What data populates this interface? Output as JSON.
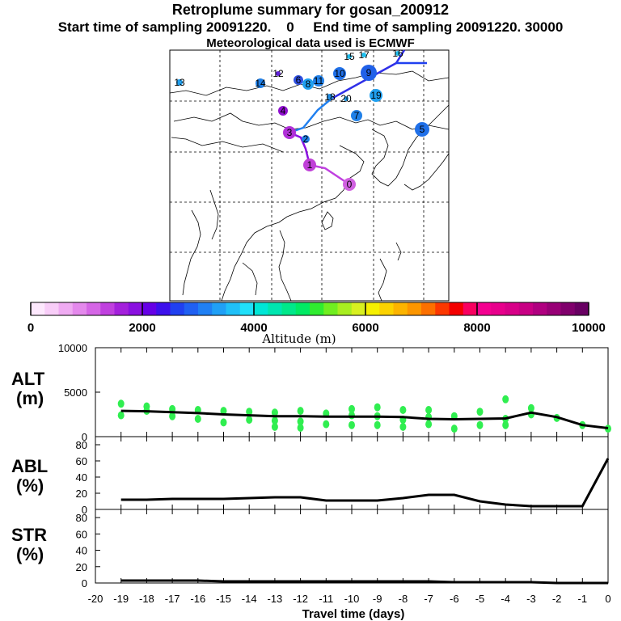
{
  "header": {
    "title": "Retroplume summary for gosan_200912",
    "sampling": "Start time of sampling 20091220.    0     End time of sampling 20091220. 30000",
    "met": "Meteorological data used is ECMWF"
  },
  "colorbar": {
    "label": "Altitude  (m)",
    "ticks": [
      "0",
      "2000",
      "4000",
      "6000",
      "8000",
      "10000"
    ],
    "colors": [
      "#fde8fd",
      "#f8cdf8",
      "#efabf2",
      "#e489ec",
      "#d566e6",
      "#c040df",
      "#a420dc",
      "#8a10e0",
      "#6600e6",
      "#3c10ec",
      "#2040f0",
      "#2060f2",
      "#2080f4",
      "#20a0f6",
      "#20c0f8",
      "#20e0fa",
      "#00e6d6",
      "#00e6b0",
      "#00e88a",
      "#00ea64",
      "#30ec30",
      "#70ee20",
      "#a8ee20",
      "#d8f020",
      "#f6f000",
      "#fcd200",
      "#fcb400",
      "#fc9600",
      "#fc7000",
      "#fc3800",
      "#f40000",
      "#f80060",
      "#f40090",
      "#e8008c",
      "#d80088",
      "#c80084",
      "#b00080",
      "#980076",
      "#80006c",
      "#680062"
    ]
  },
  "map": {
    "trajectory_labels": [
      "0",
      "1",
      "2",
      "3",
      "4",
      "5",
      "6",
      "7",
      "8",
      "9",
      "10",
      "11",
      "12",
      "13",
      "14",
      "15",
      "16",
      "17",
      "18",
      "19",
      "20"
    ],
    "cluster_markers": [
      {
        "label": "0",
        "color": "#d060e0"
      },
      {
        "label": "1",
        "color": "#c040d8"
      },
      {
        "label": "2",
        "color": "#2080e8"
      },
      {
        "label": "3",
        "color": "#b030d8"
      },
      {
        "label": "4",
        "color": "#9010d0"
      },
      {
        "label": "5",
        "color": "#2070e8"
      },
      {
        "label": "6",
        "color": "#3050e0"
      },
      {
        "label": "7",
        "color": "#2080e8"
      },
      {
        "label": "8",
        "color": "#20a0f0"
      },
      {
        "label": "9",
        "color": "#2060e8"
      },
      {
        "label": "10",
        "color": "#2070e8"
      },
      {
        "label": "11",
        "color": "#2080e8"
      },
      {
        "label": "12",
        "color": "#6020d8"
      },
      {
        "label": "13",
        "color": "#20a0f0"
      },
      {
        "label": "14",
        "color": "#2080e8"
      },
      {
        "label": "15",
        "color": "#20c0f0"
      },
      {
        "label": "16",
        "color": "#20c0f0"
      },
      {
        "label": "17",
        "color": "#20c0f0"
      },
      {
        "label": "18",
        "color": "#2090e8"
      },
      {
        "label": "19",
        "color": "#20a0f0"
      },
      {
        "label": "20",
        "color": "#20a0f0"
      }
    ]
  },
  "chart_data": [
    {
      "type": "line",
      "name": "ALT",
      "ylabel": "ALT (m)",
      "xlabel": "Travel time (days)",
      "xlim": [
        -20,
        0
      ],
      "ylim": [
        0,
        10000
      ],
      "yticks": [
        0,
        5000,
        10000
      ],
      "ytick_labels": [
        "0",
        "5000",
        "10000"
      ],
      "xticks": [
        -20,
        -19,
        -18,
        -17,
        -16,
        -15,
        -14,
        -13,
        -12,
        -11,
        -10,
        -9,
        -8,
        -7,
        -6,
        -5,
        -4,
        -3,
        -2,
        -1,
        0
      ],
      "xtick_labels": [
        "-20",
        "-19",
        "-18",
        "-17",
        "-16",
        "-15",
        "-14",
        "-13",
        "-12",
        "-11",
        "-10",
        "-9",
        "-8",
        "-7",
        "-6",
        "-5",
        "-4",
        "-3",
        "-2",
        "-1",
        "0"
      ],
      "x": [
        -19,
        -18,
        -17,
        -16,
        -15,
        -14,
        -13,
        -12,
        -11,
        -10,
        -9,
        -8,
        -7,
        -6,
        -5,
        -4,
        -3,
        -2,
        -1,
        0
      ],
      "y": [
        2900,
        2850,
        2750,
        2650,
        2500,
        2400,
        2300,
        2300,
        2250,
        2250,
        2250,
        2200,
        2000,
        1950,
        2000,
        2050,
        2700,
        2200,
        1300,
        950
      ],
      "scatter": {
        "color": "#30ee50",
        "points": [
          {
            "x": -19,
            "y": 3700
          },
          {
            "x": -19,
            "y": 2400
          },
          {
            "x": -18,
            "y": 3400
          },
          {
            "x": -18,
            "y": 2900
          },
          {
            "x": -17,
            "y": 3100
          },
          {
            "x": -17,
            "y": 2300
          },
          {
            "x": -16,
            "y": 3000
          },
          {
            "x": -16,
            "y": 2000
          },
          {
            "x": -15,
            "y": 2900
          },
          {
            "x": -15,
            "y": 1600
          },
          {
            "x": -14,
            "y": 2800
          },
          {
            "x": -14,
            "y": 1900
          },
          {
            "x": -13,
            "y": 2700
          },
          {
            "x": -13,
            "y": 1800
          },
          {
            "x": -13,
            "y": 1100
          },
          {
            "x": -12,
            "y": 2900
          },
          {
            "x": -12,
            "y": 1700
          },
          {
            "x": -12,
            "y": 1000
          },
          {
            "x": -11,
            "y": 2600
          },
          {
            "x": -11,
            "y": 1400
          },
          {
            "x": -10,
            "y": 3100
          },
          {
            "x": -10,
            "y": 2400
          },
          {
            "x": -10,
            "y": 1300
          },
          {
            "x": -9,
            "y": 3300
          },
          {
            "x": -9,
            "y": 2300
          },
          {
            "x": -9,
            "y": 1300
          },
          {
            "x": -8,
            "y": 3000
          },
          {
            "x": -8,
            "y": 1900
          },
          {
            "x": -8,
            "y": 1100
          },
          {
            "x": -7,
            "y": 3000
          },
          {
            "x": -7,
            "y": 2200
          },
          {
            "x": -7,
            "y": 1400
          },
          {
            "x": -6,
            "y": 2300
          },
          {
            "x": -6,
            "y": 900
          },
          {
            "x": -5,
            "y": 2800
          },
          {
            "x": -5,
            "y": 1300
          },
          {
            "x": -4,
            "y": 4200
          },
          {
            "x": -4,
            "y": 2000
          },
          {
            "x": -4,
            "y": 1300
          },
          {
            "x": -3,
            "y": 3200
          },
          {
            "x": -3,
            "y": 2500
          },
          {
            "x": -2,
            "y": 2100
          },
          {
            "x": -1,
            "y": 1300
          },
          {
            "x": 0,
            "y": 900
          }
        ]
      }
    },
    {
      "type": "line",
      "name": "ABL",
      "ylabel": "ABL (%)",
      "xlim": [
        -20,
        0
      ],
      "ylim": [
        0,
        90
      ],
      "yticks": [
        0,
        20,
        40,
        60,
        80
      ],
      "ytick_labels": [
        "0",
        "20",
        "40",
        "60",
        "80"
      ],
      "x": [
        -19,
        -18,
        -17,
        -16,
        -15,
        -14,
        -13,
        -12,
        -11,
        -10,
        -9,
        -8,
        -7,
        -6,
        -5,
        -4,
        -3,
        -2,
        -1,
        0
      ],
      "y": [
        12,
        12,
        13,
        13,
        13,
        14,
        15,
        15,
        11,
        11,
        11,
        14,
        18,
        18,
        10,
        6,
        4,
        4,
        4,
        63
      ]
    },
    {
      "type": "line",
      "name": "STR",
      "ylabel": "STR (%)",
      "xlim": [
        -20,
        0
      ],
      "ylim": [
        0,
        90
      ],
      "yticks": [
        0,
        20,
        40,
        60,
        80
      ],
      "ytick_labels": [
        "0",
        "20",
        "40",
        "60",
        "80"
      ],
      "x": [
        -19,
        -18,
        -17,
        -16,
        -15,
        -14,
        -13,
        -12,
        -11,
        -10,
        -9,
        -8,
        -7,
        -6,
        -5,
        -4,
        -3,
        -2,
        -1,
        0
      ],
      "y": [
        3,
        3,
        3,
        3,
        2,
        2,
        2,
        2,
        2,
        2,
        2,
        2,
        2,
        1,
        1,
        1,
        1,
        0,
        0,
        0
      ]
    }
  ]
}
